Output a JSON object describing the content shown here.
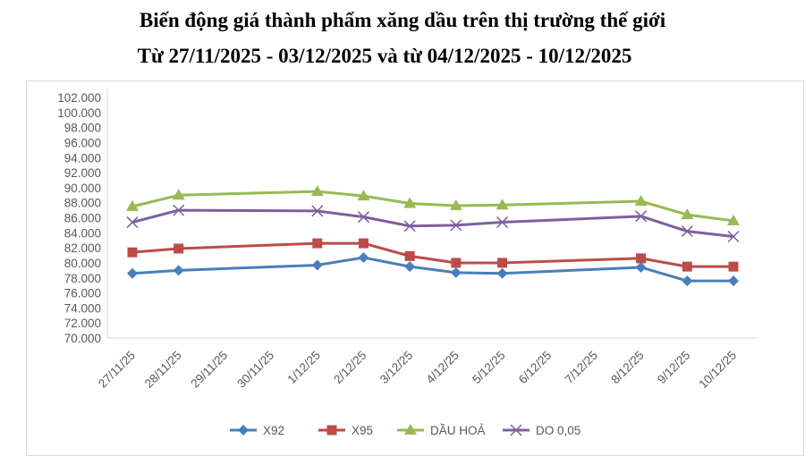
{
  "chart_data": {
    "type": "line",
    "title": "Biến động giá thành phẩm xăng dầu trên thị trường thế giới",
    "subtitle": "Từ 27/11/2025 - 03/12/2025 và từ 04/12/2025 - 10/12/2025",
    "categories": [
      "27/11/25",
      "28/11/25",
      "29/11/25",
      "30/11/25",
      "1/12/25",
      "2/12/25",
      "3/12/25",
      "4/12/25",
      "5/12/25",
      "6/12/25",
      "7/12/25",
      "8/12/25",
      "9/12/25",
      "10/12/25"
    ],
    "ylim": [
      70000,
      102000
    ],
    "yticks": [
      70000,
      72000,
      74000,
      76000,
      78000,
      80000,
      82000,
      84000,
      86000,
      88000,
      90000,
      92000,
      94000,
      96000,
      98000,
      100000,
      102000
    ],
    "ytick_labels": [
      "70.000",
      "72.000",
      "74.000",
      "76.000",
      "78.000",
      "80.000",
      "82.000",
      "84.000",
      "86.000",
      "88.000",
      "90.000",
      "92.000",
      "94.000",
      "96.000",
      "98.000",
      "100.000",
      "102.000"
    ],
    "grid": false,
    "legend": "bottom",
    "series": [
      {
        "name": "X92",
        "color": "#4a7ebb",
        "marker": "diamond",
        "values": [
          78600,
          79000,
          null,
          null,
          79700,
          80700,
          79500,
          78700,
          78600,
          null,
          null,
          79400,
          77600,
          77600
        ]
      },
      {
        "name": "X95",
        "color": "#be4b48",
        "marker": "square",
        "values": [
          81400,
          81900,
          null,
          null,
          82600,
          82600,
          80900,
          80000,
          80000,
          null,
          null,
          80600,
          79500,
          79500
        ]
      },
      {
        "name": "DẦU HOẢ",
        "color": "#98b954",
        "marker": "triangle",
        "values": [
          87500,
          89000,
          null,
          null,
          89500,
          88900,
          87900,
          87600,
          87700,
          null,
          null,
          88200,
          86400,
          85600
        ]
      },
      {
        "name": "DO 0,05",
        "color": "#7d5fa0",
        "marker": "x",
        "values": [
          85400,
          87000,
          null,
          null,
          86900,
          86100,
          84900,
          85000,
          85400,
          null,
          null,
          86200,
          84200,
          83500
        ]
      }
    ]
  }
}
